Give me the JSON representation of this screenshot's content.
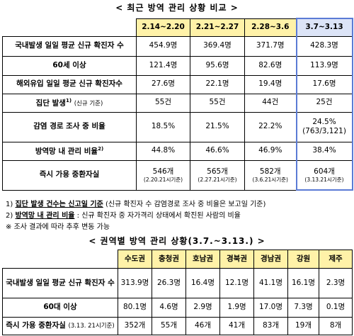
{
  "title1": "< 최근 방역 관리 상황 비교 >",
  "table1": {
    "columns": [
      "2.14~2.20",
      "2.21~2.27",
      "2.28~3.6",
      "3.7~3.13"
    ],
    "rows": [
      {
        "label": {
          "text": "국내발생 일일 평균 신규 확진자 수"
        },
        "cells": [
          {
            "value": "454.9명"
          },
          {
            "value": "369.4명"
          },
          {
            "value": "371.7명"
          },
          {
            "value": "428.3명"
          }
        ]
      },
      {
        "label": {
          "text": "60세 이상"
        },
        "cells": [
          {
            "value": "121.4명"
          },
          {
            "value": "95.6명"
          },
          {
            "value": "82.6명"
          },
          {
            "value": "113.9명"
          }
        ]
      },
      {
        "label": {
          "text": "해외유입 일일 평균 신규 확진자수"
        },
        "cells": [
          {
            "value": "27.6명"
          },
          {
            "value": "22.1명"
          },
          {
            "value": "19.4명"
          },
          {
            "value": "17.6명"
          }
        ]
      },
      {
        "label": {
          "text": "집단 발생",
          "sup": "1)",
          "note": "(신규 기준)"
        },
        "cells": [
          {
            "value": "55건"
          },
          {
            "value": "55건"
          },
          {
            "value": "44건"
          },
          {
            "value": "25건"
          }
        ]
      },
      {
        "label": {
          "text": "감염 경로 조사 중 비율"
        },
        "cells": [
          {
            "value": "18.5%"
          },
          {
            "value": "21.5%"
          },
          {
            "value": "22.2%"
          },
          {
            "value": "24.5%",
            "sub": "(763/3,121)"
          }
        ]
      },
      {
        "label": {
          "text": "방역망 내 관리 비율",
          "sup": "2)"
        },
        "cells": [
          {
            "value": "44.8%"
          },
          {
            "value": "46.6%"
          },
          {
            "value": "46.9%"
          },
          {
            "value": "38.4%"
          }
        ]
      },
      {
        "label": {
          "text": "즉시 가용 중환자실"
        },
        "cells": [
          {
            "value": "546개",
            "note": "(2.20.21시기준)"
          },
          {
            "value": "565개",
            "note": "(2.27.21시기준)"
          },
          {
            "value": "582개",
            "note": "(3.6.21시기준)"
          },
          {
            "value": "604개",
            "note": "(3.13.21시기준)"
          }
        ]
      }
    ]
  },
  "footnotes": [
    {
      "marker": "1)",
      "bold": "집단 발생 건수는 신고일 기준",
      "rest": " (신규 확진자 수 감염경로 조사 중 비율은 보고일 기준)"
    },
    {
      "marker": "2)",
      "bold": "방역망 내 관리 비율",
      "rest": " : 신규 확진자 중 자가격리 상태에서 확진된 사람의 비율"
    },
    {
      "marker": "※",
      "bold": "",
      "rest": " 조사 결과에 따라 추후 변동 가능"
    }
  ],
  "title2": "< 권역별 방역 관리 상황(3.7.~3.13.) >",
  "table2": {
    "columns": [
      "수도권",
      "충청권",
      "호남권",
      "경북권",
      "경남권",
      "강원",
      "제주"
    ],
    "rows": [
      {
        "label": {
          "text": "국내발생 일일 평균 신규 확진자 수"
        },
        "cells": [
          {
            "value": "313.9명"
          },
          {
            "value": "26.3명"
          },
          {
            "value": "16.4명"
          },
          {
            "value": "12.1명"
          },
          {
            "value": "41.1명"
          },
          {
            "value": "16.1명"
          },
          {
            "value": "2.3명"
          }
        ]
      },
      {
        "label": {
          "text": "60대 이상"
        },
        "cells": [
          {
            "value": "80.1명"
          },
          {
            "value": "4.6명"
          },
          {
            "value": "2.9명"
          },
          {
            "value": "1.9명"
          },
          {
            "value": "17.0명"
          },
          {
            "value": "7.3명"
          },
          {
            "value": "0.1명"
          }
        ]
      },
      {
        "label": {
          "text": "즉시 가용 중환자실",
          "note": "(3.13. 21시기준)"
        },
        "cells": [
          {
            "value": "352개"
          },
          {
            "value": "55개"
          },
          {
            "value": "46개"
          },
          {
            "value": "41개"
          },
          {
            "value": "83개"
          },
          {
            "value": "19개"
          },
          {
            "value": "8개"
          }
        ]
      }
    ]
  }
}
